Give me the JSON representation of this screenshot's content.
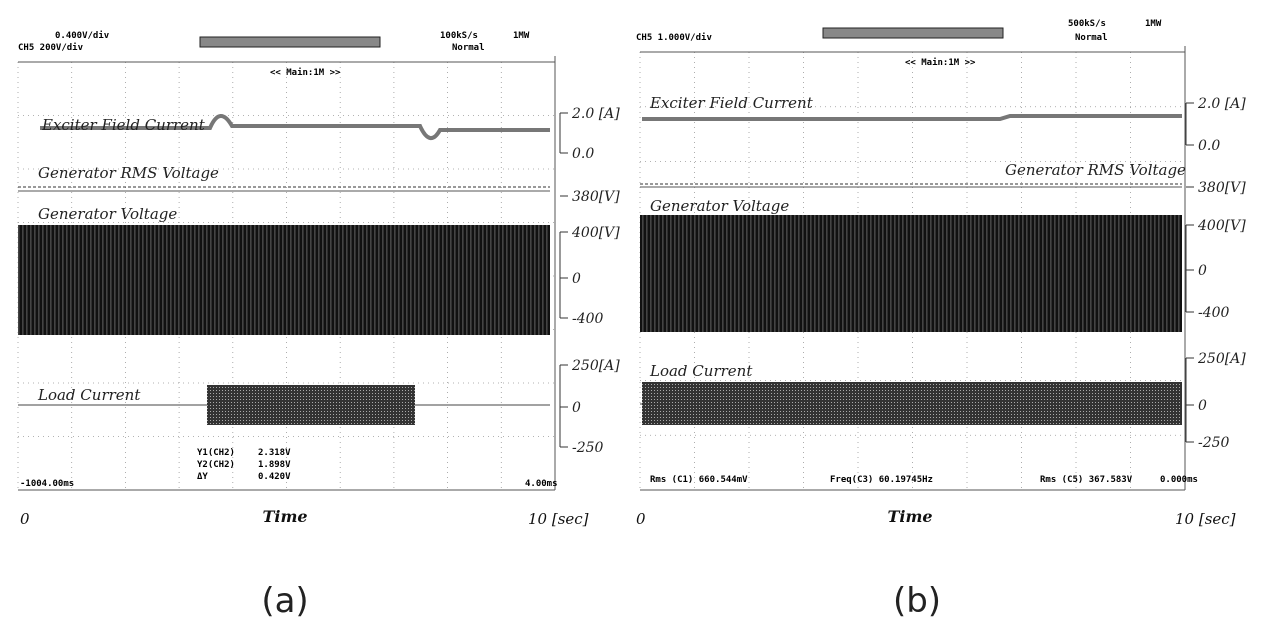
{
  "panels": [
    {
      "header": [
        "0.400V/div",
        "CH5  200V/div",
        "100kS/s",
        "1MW",
        "Normal",
        "<< Main:1M >>"
      ],
      "traces": [
        "Exciter Field Current",
        "Generator RMS Voltage",
        "Generator Voltage",
        "Load Current"
      ],
      "scale_labels": [
        "2.0 [A]",
        "0.0",
        "380[V]",
        "400[V]",
        "0",
        "-400",
        "250[A]",
        "0",
        "-250"
      ],
      "readouts": [
        "Y1(CH2)",
        "2.318V",
        "Y2(CH2)",
        "1.898V",
        "ΔY",
        "0.420V",
        "-1004.00ms",
        "4.00ms"
      ],
      "x_axis": {
        "start": "0",
        "label": "Time",
        "end": "10 [sec]"
      },
      "caption": "(a)"
    },
    {
      "header": [
        "CH5  1.000V/div",
        "500kS/s",
        "1MW",
        "Normal",
        "<< Main:1M >>"
      ],
      "traces": [
        "Exciter Field Current",
        "Generator RMS Voltage",
        "Generator Voltage",
        "Load Current"
      ],
      "scale_labels": [
        "2.0 [A]",
        "0.0",
        "380[V]",
        "400[V]",
        "0",
        "-400",
        "250[A]",
        "0",
        "-250"
      ],
      "readouts": [
        "Rms (C1)  660.544mV",
        "Freq(C3)  60.19745Hz",
        "Rms (C5)  367.583V",
        "0.000ms"
      ],
      "x_axis": {
        "start": "0",
        "label": "Time",
        "end": "10 [sec]"
      },
      "caption": "(b)"
    }
  ]
}
